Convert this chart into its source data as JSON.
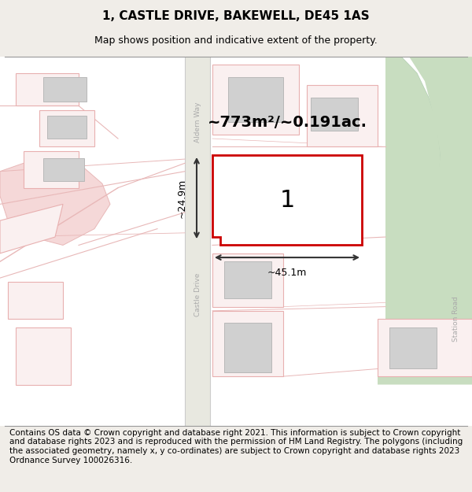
{
  "title": "1, CASTLE DRIVE, BAKEWELL, DE45 1AS",
  "subtitle": "Map shows position and indicative extent of the property.",
  "footer": "Contains OS data © Crown copyright and database right 2021. This information is subject to Crown copyright and database rights 2023 and is reproduced with the permission of HM Land Registry. The polygons (including the associated geometry, namely x, y co-ordinates) are subject to Crown copyright and database rights 2023 Ordnance Survey 100026316.",
  "area_label": "~773m²/~0.191ac.",
  "plot_number": "1",
  "width_label": "~45.1m",
  "height_label": "~24.9m",
  "bg_color": "#f5f3f0",
  "map_bg": "#ffffff",
  "road_color": "#ffffff",
  "building_fill": "#d9d9d9",
  "building_outline": "#c0c0c0",
  "plot_fill": "#ffffff",
  "plot_border": "#cc0000",
  "road_line_color": "#e8b8b8",
  "pink_area": "#f5d0d0",
  "river_color": "#c8ddc8",
  "street_label_color": "#aaaaaa",
  "dim_color": "#222222",
  "title_fontsize": 11,
  "subtitle_fontsize": 9,
  "footer_fontsize": 7.5
}
